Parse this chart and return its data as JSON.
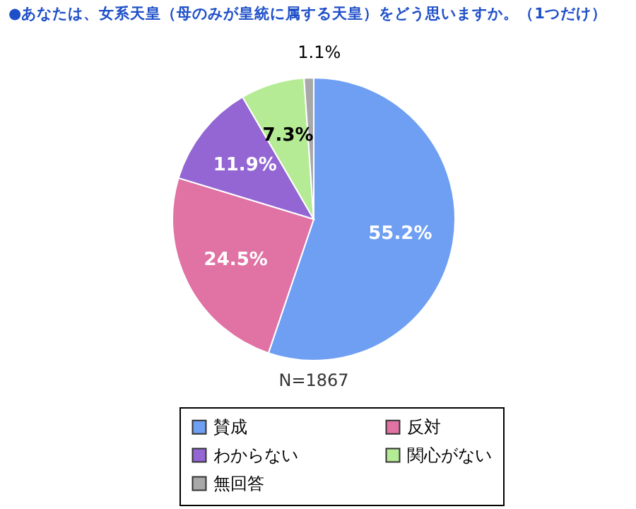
{
  "chart_data": {
    "type": "pie",
    "title": "●あなたは、女系天皇（母のみが皇統に属する天皇）をどう思いますか。（1つだけ）",
    "categories": [
      "賛成",
      "反対",
      "わからない",
      "関心がない",
      "無回答"
    ],
    "values": [
      55.2,
      24.5,
      11.9,
      7.3,
      1.1
    ],
    "value_labels": [
      "55.2%",
      "24.5%",
      "11.9%",
      "7.3%",
      "1.1%"
    ],
    "colors": [
      "#6f9ff2",
      "#e072a4",
      "#9366d4",
      "#b4eb94",
      "#a8a8a8"
    ],
    "annotations": [
      "N=1867"
    ],
    "legend": "bottom"
  }
}
